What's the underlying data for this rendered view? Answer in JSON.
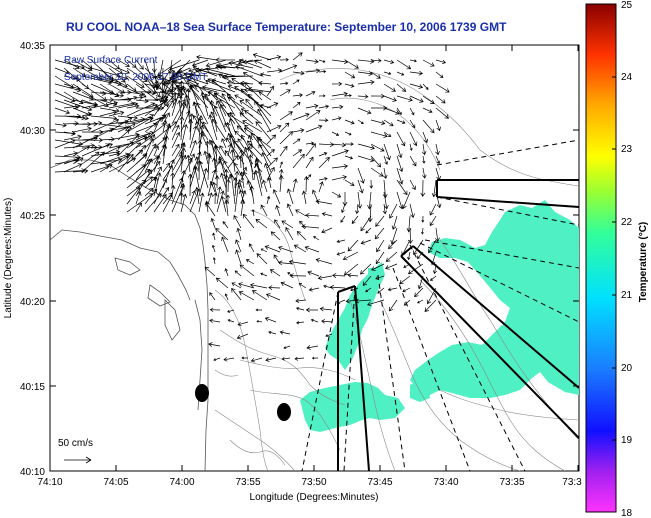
{
  "title": "RU COOL  NOAA–18  Sea Surface Temperature:  September 10, 2006 1739 GMT",
  "annotation": {
    "line1": "Raw Surface Current",
    "line2": "September 10, 2006 17:00 GMT"
  },
  "scale_label": "50 cm/s",
  "axes": {
    "xlabel": "Longitude (Degrees:Minutes)",
    "ylabel": "Latitude (Degrees:Minutes)",
    "xticks": [
      "74:10",
      "74:05",
      "74:00",
      "73:55",
      "73:50",
      "73:45",
      "73:40",
      "73:35",
      "73:3"
    ],
    "yticks": [
      "40:35",
      "40:30",
      "40:25",
      "40:20",
      "40:15",
      "40:10"
    ]
  },
  "colorbar": {
    "label": "Temperature (°C)",
    "ticks": [
      "25",
      "24",
      "23",
      "22",
      "21",
      "20",
      "19",
      "18"
    ],
    "min": 18,
    "max": 25
  },
  "colors": {
    "title": "#1a2fa8",
    "sst_patch": "#4ef0c4",
    "vector": "#000000"
  }
}
